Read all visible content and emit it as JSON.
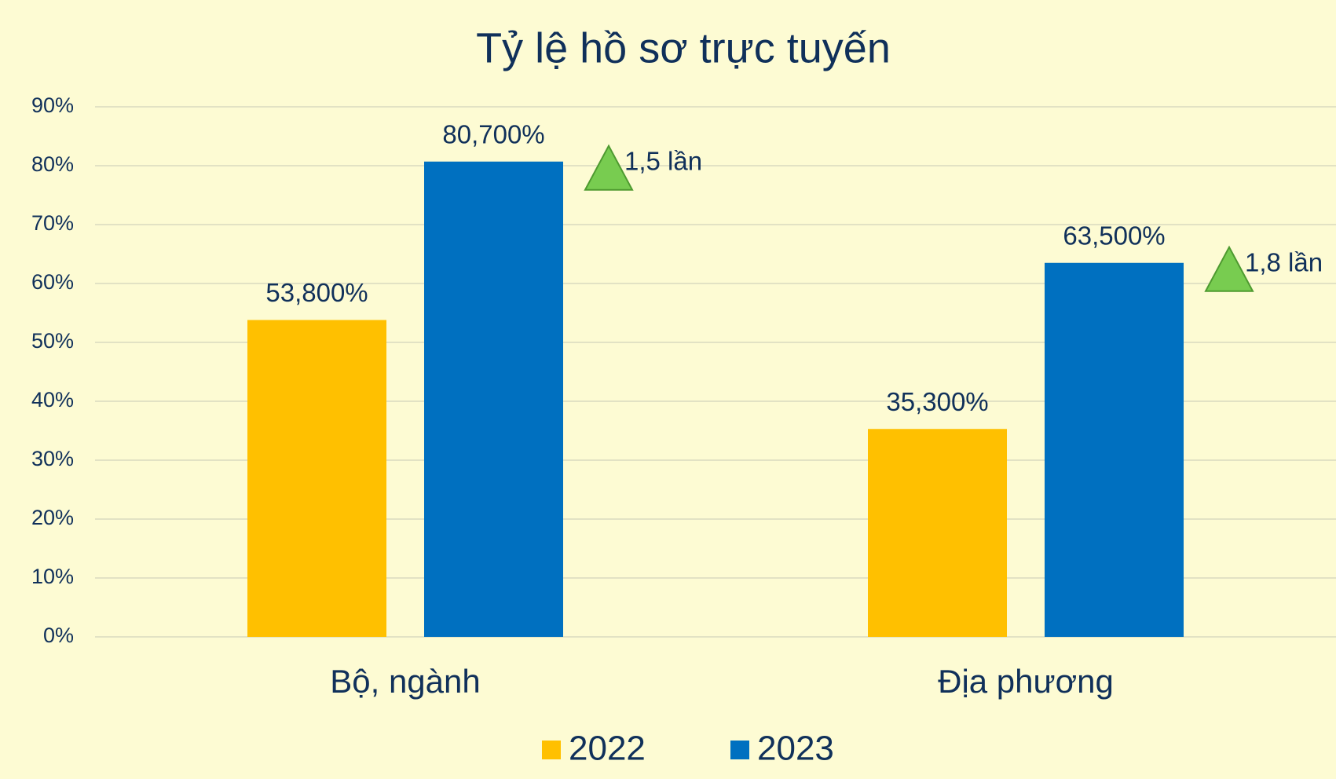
{
  "chart_data": {
    "type": "bar",
    "title": "Tỷ lệ hồ sơ trực tuyến",
    "categories": [
      "Bộ, ngành",
      "Địa phương"
    ],
    "series": [
      {
        "name": "2022",
        "color": "#ffc000",
        "values": [
          53.8,
          35.3
        ],
        "value_labels": [
          "53,800%",
          "35,300%"
        ]
      },
      {
        "name": "2023",
        "color": "#0070c0",
        "values": [
          80.7,
          63.5
        ],
        "value_labels": [
          "80,700%",
          "63,500%"
        ]
      }
    ],
    "annotations": [
      "1,5 lần",
      "1,8 lần"
    ],
    "ylim": [
      0,
      90
    ],
    "yticks": [
      {
        "value": 0,
        "label": "0%"
      },
      {
        "value": 10,
        "label": "10%"
      },
      {
        "value": 20,
        "label": "20%"
      },
      {
        "value": 30,
        "label": "30%"
      },
      {
        "value": 40,
        "label": "40%"
      },
      {
        "value": 50,
        "label": "50%"
      },
      {
        "value": 60,
        "label": "60%"
      },
      {
        "value": 70,
        "label": "70%"
      },
      {
        "value": 80,
        "label": "80%"
      },
      {
        "value": 90,
        "label": "90%"
      }
    ],
    "grid": true,
    "legend": "bottom"
  }
}
